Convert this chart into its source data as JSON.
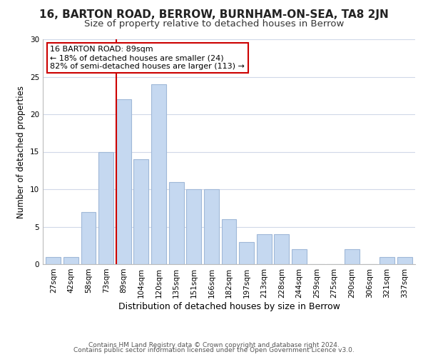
{
  "title": "16, BARTON ROAD, BERROW, BURNHAM-ON-SEA, TA8 2JN",
  "subtitle": "Size of property relative to detached houses in Berrow",
  "xlabel": "Distribution of detached houses by size in Berrow",
  "ylabel": "Number of detached properties",
  "bar_labels": [
    "27sqm",
    "42sqm",
    "58sqm",
    "73sqm",
    "89sqm",
    "104sqm",
    "120sqm",
    "135sqm",
    "151sqm",
    "166sqm",
    "182sqm",
    "197sqm",
    "213sqm",
    "228sqm",
    "244sqm",
    "259sqm",
    "275sqm",
    "290sqm",
    "306sqm",
    "321sqm",
    "337sqm"
  ],
  "bar_values": [
    1,
    1,
    7,
    15,
    22,
    14,
    24,
    11,
    10,
    10,
    6,
    3,
    4,
    4,
    2,
    0,
    0,
    2,
    0,
    1,
    1
  ],
  "bar_color": "#c5d8f0",
  "bar_edge_color": "#a0b8d8",
  "highlight_index": 4,
  "highlight_line_color": "#cc0000",
  "annotation_text": "16 BARTON ROAD: 89sqm\n← 18% of detached houses are smaller (24)\n82% of semi-detached houses are larger (113) →",
  "annotation_box_color": "#ffffff",
  "annotation_box_edge": "#cc0000",
  "ylim": [
    0,
    30
  ],
  "yticks": [
    0,
    5,
    10,
    15,
    20,
    25,
    30
  ],
  "grid_color": "#d0d8e8",
  "footer_line1": "Contains HM Land Registry data © Crown copyright and database right 2024.",
  "footer_line2": "Contains public sector information licensed under the Open Government Licence v3.0.",
  "title_fontsize": 11,
  "subtitle_fontsize": 9.5,
  "xlabel_fontsize": 9,
  "ylabel_fontsize": 8.5,
  "tick_fontsize": 7.5,
  "footer_fontsize": 6.5,
  "annotation_fontsize": 8
}
